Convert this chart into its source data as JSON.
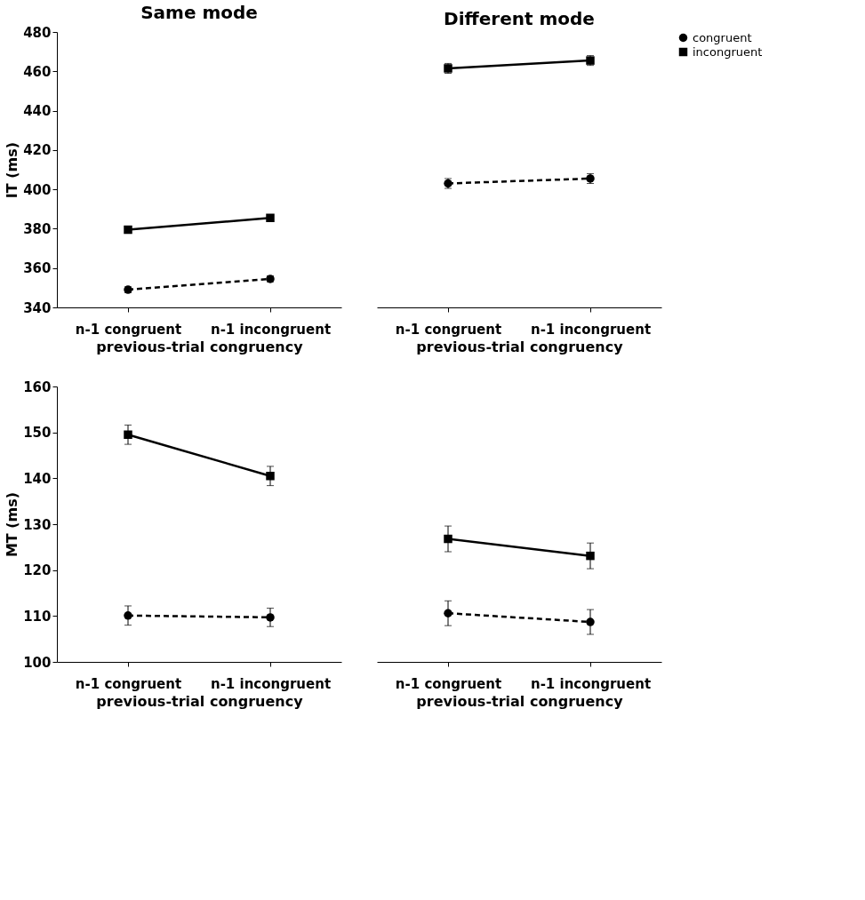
{
  "chart_data": [
    {
      "type": "line",
      "title": "Same mode",
      "ylabel": "IT (ms)",
      "xlabel": "previous-trial congruency",
      "categories": [
        "n-1 congruent",
        "n-1 incongruent"
      ],
      "ylim": [
        340,
        480
      ],
      "yticks": [
        340,
        360,
        380,
        400,
        420,
        440,
        460,
        480
      ],
      "grid": false,
      "series": [
        {
          "color": "#000000",
          "values": [
            349,
            354.5
          ],
          "errors": [
            1.5,
            1.5
          ],
          "marker": "circle",
          "line_style": "dashed"
        },
        {
          "color": "#000000",
          "values": [
            379.5,
            385.5
          ],
          "errors": [
            1.5,
            1.5
          ],
          "marker": "square",
          "line_style": "solid"
        }
      ]
    },
    {
      "type": "line",
      "title": "Different mode",
      "xlabel": "previous-trial congruency",
      "categories": [
        "n-1 congruent",
        "n-1 incongruent"
      ],
      "ylim": [
        340,
        480
      ],
      "tick_labels": "x",
      "grid": false,
      "legend": "top right",
      "series": [
        {
          "name": "congruent",
          "color": "#000000",
          "values": [
            403,
            405.5
          ],
          "errors": [
            2.5,
            2.5
          ],
          "marker": "circle",
          "line_style": "dashed"
        },
        {
          "name": "incongruent",
          "color": "#000000",
          "values": [
            461.5,
            465.5
          ],
          "errors": [
            2.5,
            2.5
          ],
          "marker": "square",
          "line_style": "solid"
        }
      ]
    },
    {
      "type": "line",
      "ylabel": "MT (ms)",
      "xlabel": "previous-trial congruency",
      "categories": [
        "n-1 congruent",
        "n-1 incongruent"
      ],
      "ylim": [
        100,
        160
      ],
      "yticks": [
        100,
        110,
        120,
        130,
        140,
        150,
        160
      ],
      "grid": false,
      "series": [
        {
          "color": "#000000",
          "values": [
            110.1,
            109.7
          ],
          "errors": [
            2.1,
            2.0
          ],
          "marker": "circle",
          "line_style": "dashed"
        },
        {
          "color": "#000000",
          "values": [
            149.5,
            140.5
          ],
          "errors": [
            2.1,
            2.1
          ],
          "marker": "square",
          "line_style": "solid"
        }
      ]
    },
    {
      "type": "line",
      "xlabel": "previous-trial congruency",
      "categories": [
        "n-1 congruent",
        "n-1 incongruent"
      ],
      "ylim": [
        100,
        160
      ],
      "tick_labels": "x",
      "grid": false,
      "series": [
        {
          "color": "#000000",
          "values": [
            110.6,
            108.7
          ],
          "errors": [
            2.7,
            2.7
          ],
          "marker": "circle",
          "line_style": "dashed"
        },
        {
          "color": "#000000",
          "values": [
            126.8,
            123.1
          ],
          "errors": [
            2.8,
            2.8
          ],
          "marker": "square",
          "line_style": "solid"
        }
      ]
    }
  ]
}
